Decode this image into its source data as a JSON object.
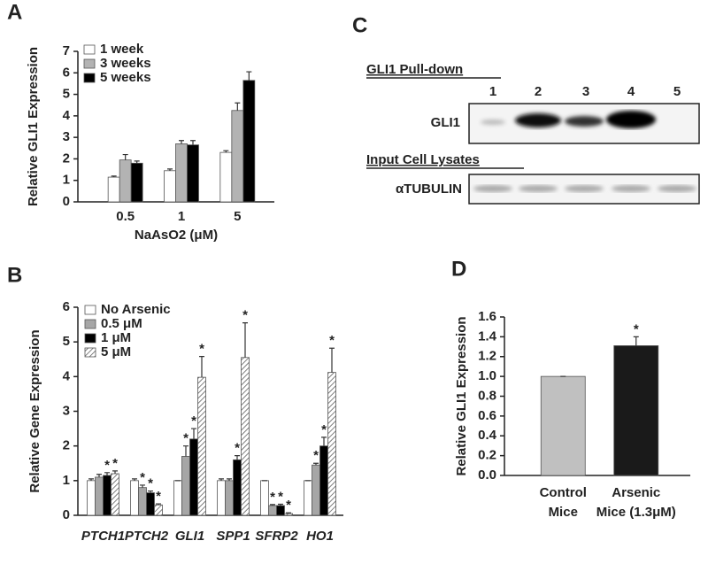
{
  "chart_data": [
    {
      "type": "bar",
      "panel": "A",
      "ylabel": "Relative GLI1 Expression",
      "xlabel": "NaAsO2 (μM)",
      "categories": [
        "0.5",
        "1",
        "5"
      ],
      "series": [
        {
          "name": "1 week",
          "color": "#ffffff",
          "values": [
            1.15,
            1.45,
            2.3
          ],
          "errors": [
            0.05,
            0.08,
            0.08
          ]
        },
        {
          "name": "3 weeks",
          "color": "#b3b3b3",
          "values": [
            1.95,
            2.7,
            4.25
          ],
          "errors": [
            0.25,
            0.15,
            0.35
          ]
        },
        {
          "name": "5 weeks",
          "color": "#000000",
          "values": [
            1.8,
            2.65,
            5.65
          ],
          "errors": [
            0.1,
            0.2,
            0.4
          ]
        }
      ],
      "ylim": [
        0,
        7
      ],
      "yticks": [
        0,
        1,
        2,
        3,
        4,
        5,
        6,
        7
      ],
      "grid": false
    },
    {
      "type": "bar",
      "panel": "B",
      "ylabel": "Relative Gene Expression",
      "categories": [
        "PTCH1",
        "PTCH2",
        "GLI1",
        "SPP1",
        "SFRP2",
        "HO1"
      ],
      "series": [
        {
          "name": "No Arsenic",
          "color": "#ffffff",
          "values": [
            1,
            1,
            1,
            1,
            1,
            1
          ],
          "errors": [
            0.05,
            0.05,
            0,
            0.05,
            0,
            0
          ]
        },
        {
          "name": "0.5 μM",
          "color": "#a6a6a6",
          "values": [
            1.1,
            0.8,
            1.7,
            1.0,
            0.28,
            1.45
          ],
          "errors": [
            0.08,
            0.07,
            0.3,
            0.05,
            0.03,
            0.05
          ],
          "annotations": [
            null,
            "*",
            "*",
            null,
            "*",
            "*"
          ]
        },
        {
          "name": "1 μM",
          "color": "#000000",
          "values": [
            1.15,
            0.65,
            2.2,
            1.6,
            0.28,
            2.0
          ],
          "errors": [
            0.08,
            0.05,
            0.3,
            0.12,
            0.04,
            0.25
          ],
          "annotations": [
            "*",
            "*",
            "*",
            "*",
            "*",
            "*"
          ]
        },
        {
          "name": "5 μM",
          "color": "#ffffff",
          "hatch": true,
          "values": [
            1.2,
            0.3,
            3.98,
            4.55,
            0.05,
            4.12
          ],
          "errors": [
            0.08,
            0.03,
            0.6,
            1.0,
            0.02,
            0.7
          ],
          "annotations": [
            "*",
            "*",
            "*",
            "*",
            "*",
            "*"
          ]
        }
      ],
      "ylim": [
        0,
        6
      ],
      "yticks": [
        0,
        1,
        2,
        3,
        4,
        5,
        6
      ],
      "grid": false
    },
    {
      "type": "bar",
      "panel": "D",
      "ylabel": "Relative GLI1 Expression",
      "categories": [
        [
          "Control",
          "Mice"
        ],
        [
          "Arsenic",
          "Mice (1.3μM)"
        ]
      ],
      "values": [
        1.0,
        1.31
      ],
      "errors": [
        0,
        0.09
      ],
      "colors": [
        "#c0c0c0",
        "#1a1a1a"
      ],
      "annotations": [
        null,
        "*"
      ],
      "ylim": [
        0,
        1.6
      ],
      "yticks": [
        {
          "value": 0,
          "label": "0.0"
        },
        0.2,
        0.4,
        0.6,
        0.8,
        {
          "value": 1,
          "label": "1.0"
        },
        1.2,
        1.4,
        1.6
      ],
      "grid": false
    }
  ],
  "blot": {
    "panel": "C",
    "title": "GLI1 Pull-down",
    "lanes": [
      "1",
      "2",
      "3",
      "4",
      "5"
    ],
    "row1": "GLI1",
    "subtitle": "Input Cell Lysates",
    "row2": "αTUBULIN"
  }
}
